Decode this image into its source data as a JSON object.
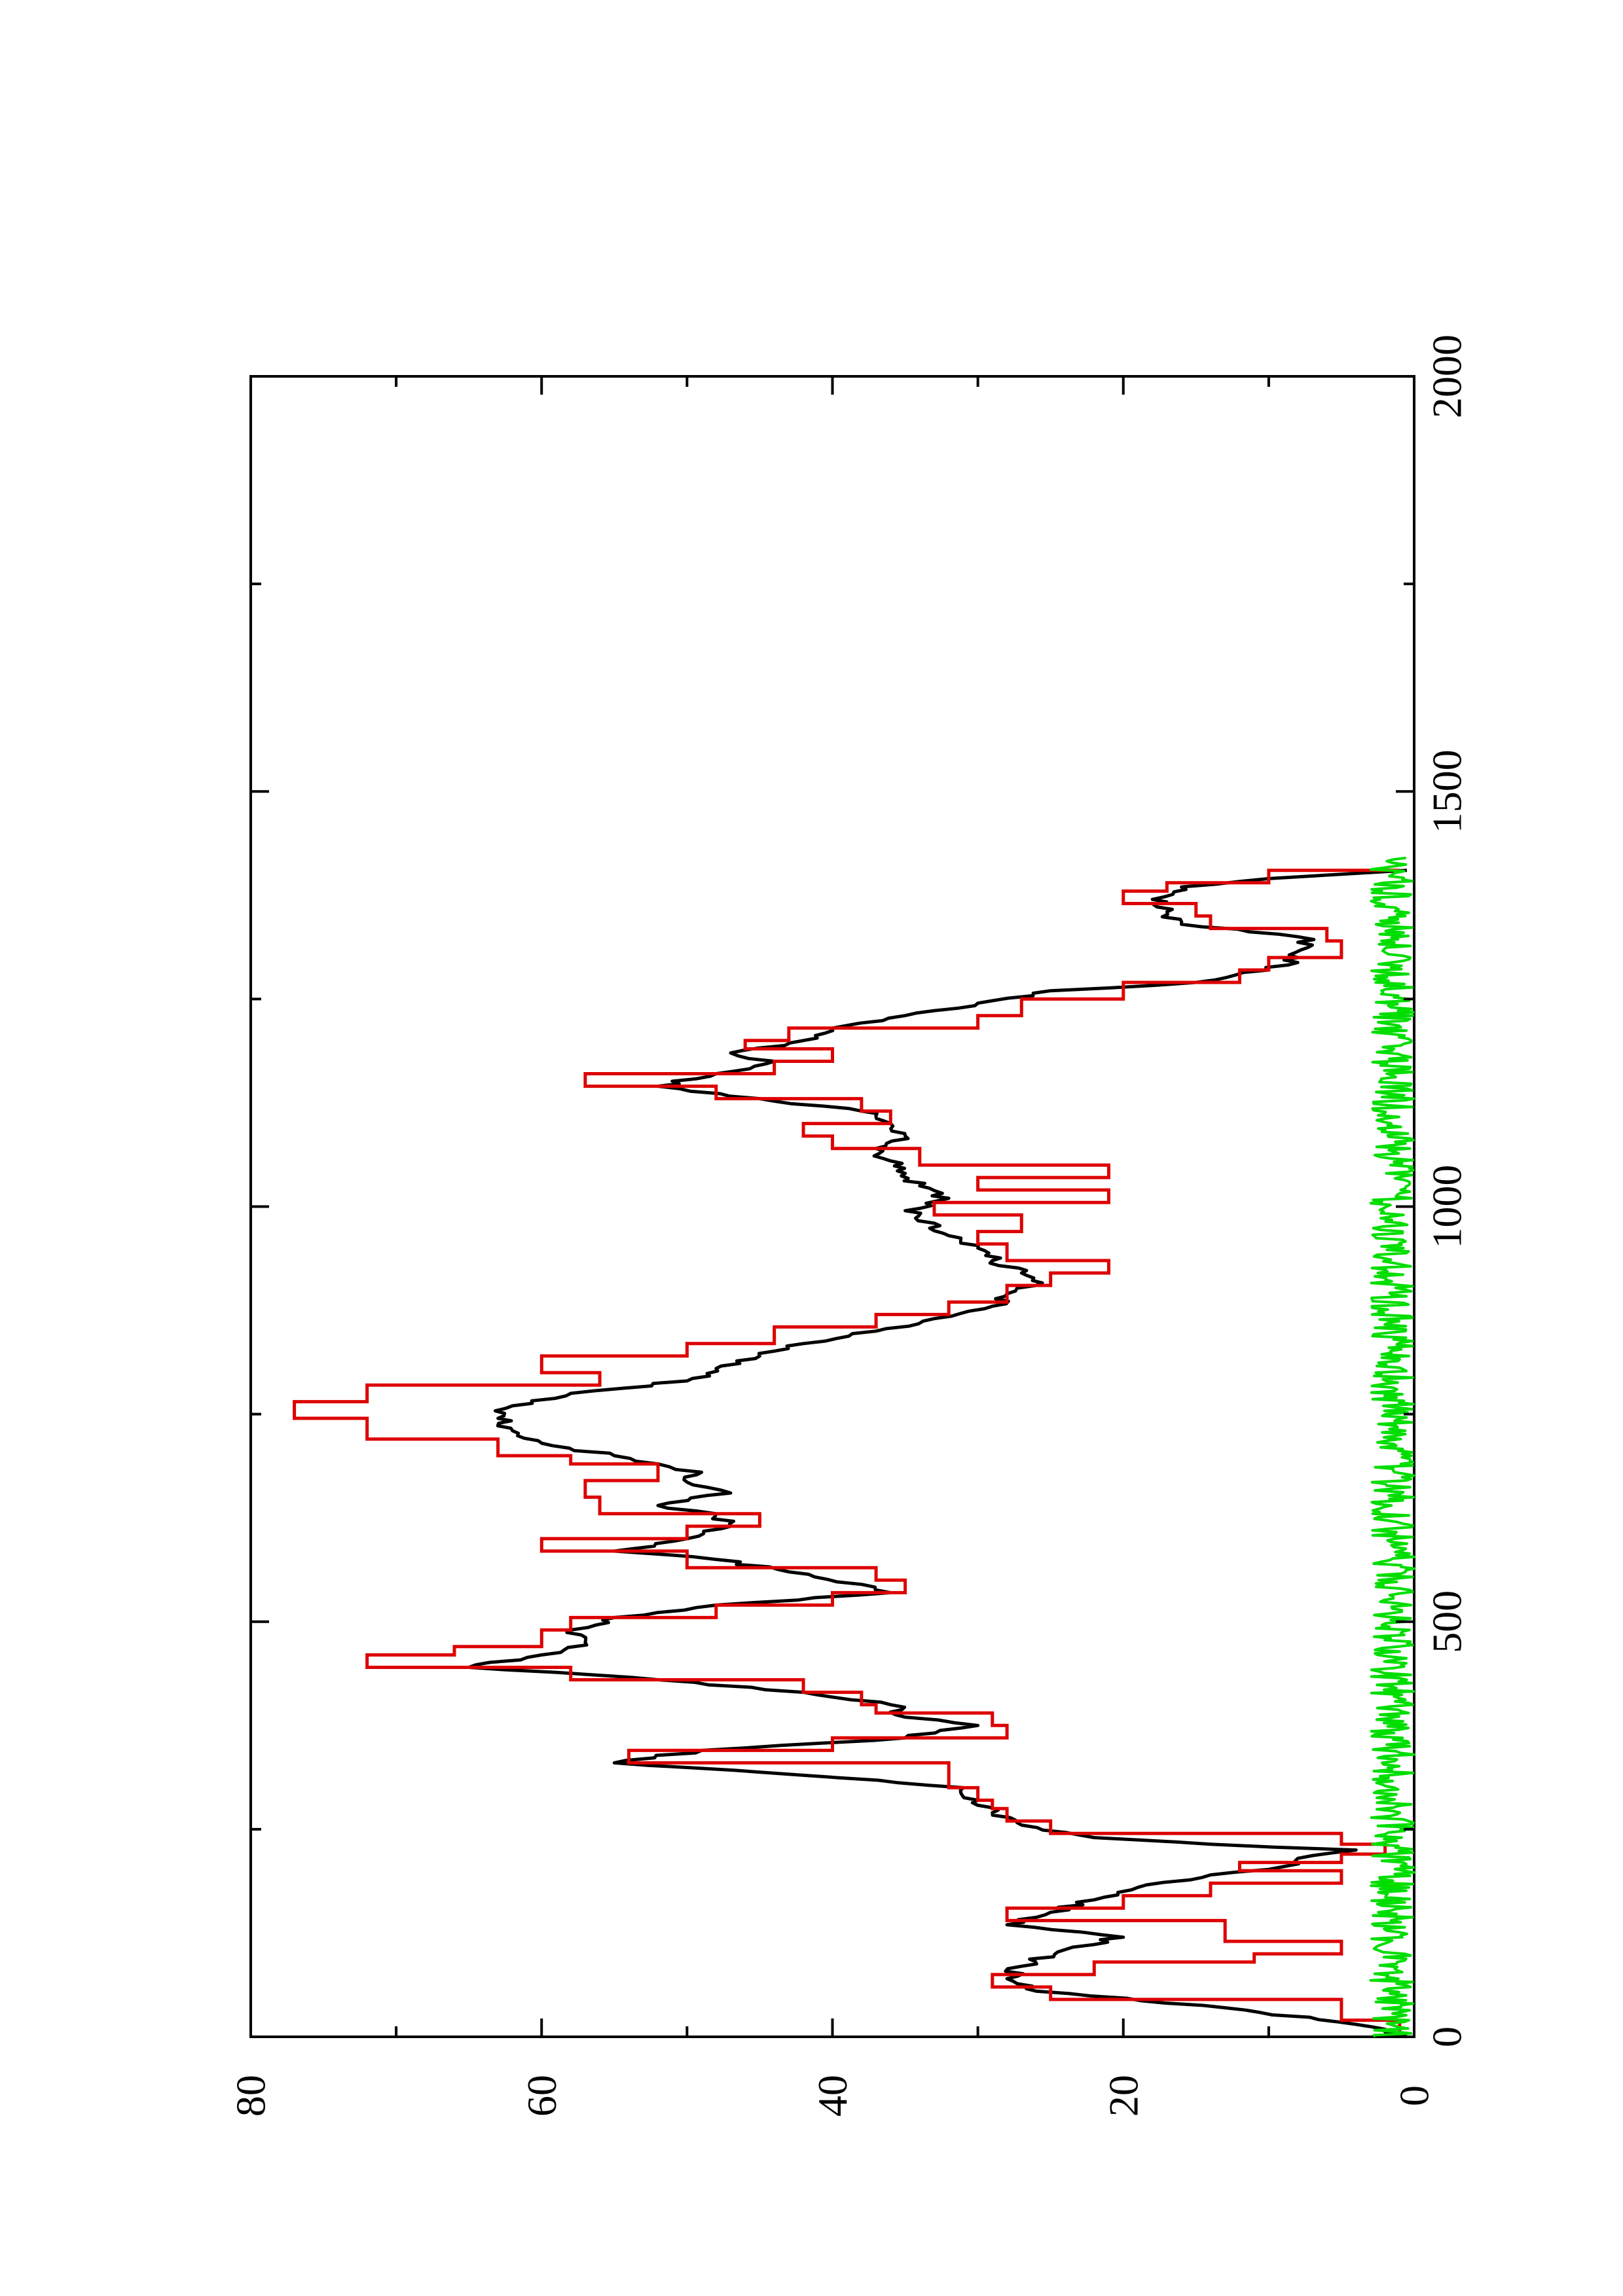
{
  "chart_data": {
    "type": "line",
    "orientation": "rotated-90-ccw",
    "x_axis": {
      "range": [
        0,
        2000
      ],
      "ticks": [
        "0",
        "500",
        "1000",
        "1500",
        "2000"
      ],
      "minor_step": 250
    },
    "y_axis": {
      "range": [
        0,
        80
      ],
      "ticks": [
        "0",
        "20",
        "40",
        "60",
        "80"
      ],
      "minor_step": 10
    },
    "grid": false,
    "legend": "none",
    "series": [
      {
        "color": "#000000",
        "style": "jagged",
        "points": [
          [
            0,
            0.5
          ],
          [
            15,
            4
          ],
          [
            35,
            13
          ],
          [
            55,
            26
          ],
          [
            70,
            28
          ],
          [
            85,
            27
          ],
          [
            105,
            24
          ],
          [
            120,
            20
          ],
          [
            135,
            28
          ],
          [
            150,
            25
          ],
          [
            165,
            22
          ],
          [
            180,
            19
          ],
          [
            195,
            14
          ],
          [
            205,
            9
          ],
          [
            215,
            8
          ],
          [
            225,
            4
          ],
          [
            232,
            14
          ],
          [
            240,
            22
          ],
          [
            255,
            27
          ],
          [
            270,
            29
          ],
          [
            285,
            30
          ],
          [
            300,
            31
          ],
          [
            315,
            42
          ],
          [
            330,
            55
          ],
          [
            345,
            49
          ],
          [
            360,
            35
          ],
          [
            375,
            30
          ],
          [
            385,
            35
          ],
          [
            400,
            36
          ],
          [
            415,
            42
          ],
          [
            430,
            52
          ],
          [
            445,
            65
          ],
          [
            460,
            60
          ],
          [
            475,
            57
          ],
          [
            490,
            58
          ],
          [
            505,
            55
          ],
          [
            520,
            48
          ],
          [
            535,
            36
          ],
          [
            545,
            38
          ],
          [
            560,
            43
          ],
          [
            575,
            48
          ],
          [
            585,
            55
          ],
          [
            600,
            50
          ],
          [
            615,
            47
          ],
          [
            630,
            48
          ],
          [
            640,
            52
          ],
          [
            655,
            47
          ],
          [
            668,
            50
          ],
          [
            680,
            49
          ],
          [
            690,
            52
          ],
          [
            700,
            55
          ],
          [
            715,
            60
          ],
          [
            730,
            62
          ],
          [
            745,
            63
          ],
          [
            760,
            62
          ],
          [
            775,
            58
          ],
          [
            790,
            50
          ],
          [
            805,
            48
          ],
          [
            820,
            45
          ],
          [
            835,
            42
          ],
          [
            850,
            37
          ],
          [
            865,
            33
          ],
          [
            880,
            29
          ],
          [
            895,
            28
          ],
          [
            905,
            26
          ],
          [
            920,
            27
          ],
          [
            935,
            29
          ],
          [
            950,
            30
          ],
          [
            965,
            32
          ],
          [
            980,
            33
          ],
          [
            995,
            35
          ],
          [
            1010,
            32
          ],
          [
            1025,
            34
          ],
          [
            1040,
            35
          ],
          [
            1055,
            36
          ],
          [
            1070,
            37
          ],
          [
            1085,
            35
          ],
          [
            1100,
            36
          ],
          [
            1115,
            38
          ],
          [
            1130,
            45
          ],
          [
            1145,
            52
          ],
          [
            1160,
            48
          ],
          [
            1175,
            44
          ],
          [
            1185,
            47
          ],
          [
            1200,
            42
          ],
          [
            1215,
            40
          ],
          [
            1230,
            35
          ],
          [
            1245,
            30
          ],
          [
            1260,
            25
          ],
          [
            1270,
            15
          ],
          [
            1285,
            10
          ],
          [
            1300,
            8
          ],
          [
            1315,
            7
          ],
          [
            1325,
            8
          ],
          [
            1340,
            16
          ],
          [
            1355,
            17
          ],
          [
            1370,
            18
          ],
          [
            1385,
            16
          ],
          [
            1395,
            10
          ],
          [
            1405,
            0.5
          ]
        ]
      },
      {
        "color": "#dd0000",
        "style": "step",
        "points": [
          [
            0,
            1
          ],
          [
            20,
            5
          ],
          [
            45,
            25
          ],
          [
            60,
            29
          ],
          [
            75,
            22
          ],
          [
            90,
            11
          ],
          [
            100,
            5
          ],
          [
            115,
            13
          ],
          [
            140,
            28
          ],
          [
            155,
            20
          ],
          [
            170,
            14
          ],
          [
            185,
            5
          ],
          [
            200,
            12
          ],
          [
            210,
            5
          ],
          [
            220,
            2
          ],
          [
            232,
            5
          ],
          [
            245,
            25
          ],
          [
            260,
            28
          ],
          [
            275,
            29
          ],
          [
            285,
            30
          ],
          [
            300,
            32
          ],
          [
            330,
            54
          ],
          [
            345,
            40
          ],
          [
            360,
            28
          ],
          [
            375,
            29
          ],
          [
            390,
            37
          ],
          [
            400,
            38
          ],
          [
            415,
            42
          ],
          [
            430,
            58
          ],
          [
            445,
            72
          ],
          [
            460,
            66
          ],
          [
            470,
            60
          ],
          [
            490,
            58
          ],
          [
            505,
            48
          ],
          [
            520,
            40
          ],
          [
            535,
            35
          ],
          [
            550,
            37
          ],
          [
            565,
            50
          ],
          [
            585,
            60
          ],
          [
            600,
            50
          ],
          [
            615,
            45
          ],
          [
            630,
            56
          ],
          [
            650,
            57
          ],
          [
            670,
            52
          ],
          [
            690,
            58
          ],
          [
            700,
            63
          ],
          [
            720,
            72
          ],
          [
            745,
            77
          ],
          [
            765,
            72
          ],
          [
            785,
            56
          ],
          [
            800,
            60
          ],
          [
            820,
            50
          ],
          [
            835,
            44
          ],
          [
            855,
            37
          ],
          [
            870,
            32
          ],
          [
            885,
            28
          ],
          [
            905,
            25
          ],
          [
            920,
            21
          ],
          [
            935,
            28
          ],
          [
            955,
            30
          ],
          [
            970,
            27
          ],
          [
            990,
            33
          ],
          [
            1005,
            21
          ],
          [
            1020,
            30
          ],
          [
            1035,
            21
          ],
          [
            1050,
            34
          ],
          [
            1070,
            40
          ],
          [
            1085,
            42
          ],
          [
            1100,
            36
          ],
          [
            1115,
            38
          ],
          [
            1130,
            48
          ],
          [
            1145,
            57
          ],
          [
            1160,
            44
          ],
          [
            1175,
            40
          ],
          [
            1190,
            46
          ],
          [
            1200,
            43
          ],
          [
            1215,
            30
          ],
          [
            1230,
            27
          ],
          [
            1250,
            20
          ],
          [
            1270,
            12
          ],
          [
            1285,
            10
          ],
          [
            1300,
            5
          ],
          [
            1320,
            6
          ],
          [
            1335,
            14
          ],
          [
            1350,
            15
          ],
          [
            1365,
            20
          ],
          [
            1380,
            17
          ],
          [
            1390,
            10
          ],
          [
            1405,
            1
          ]
        ]
      },
      {
        "color": "#00dd00",
        "style": "noise",
        "x_range": [
          0,
          1420
        ],
        "y_range": [
          0,
          3
        ]
      }
    ]
  }
}
